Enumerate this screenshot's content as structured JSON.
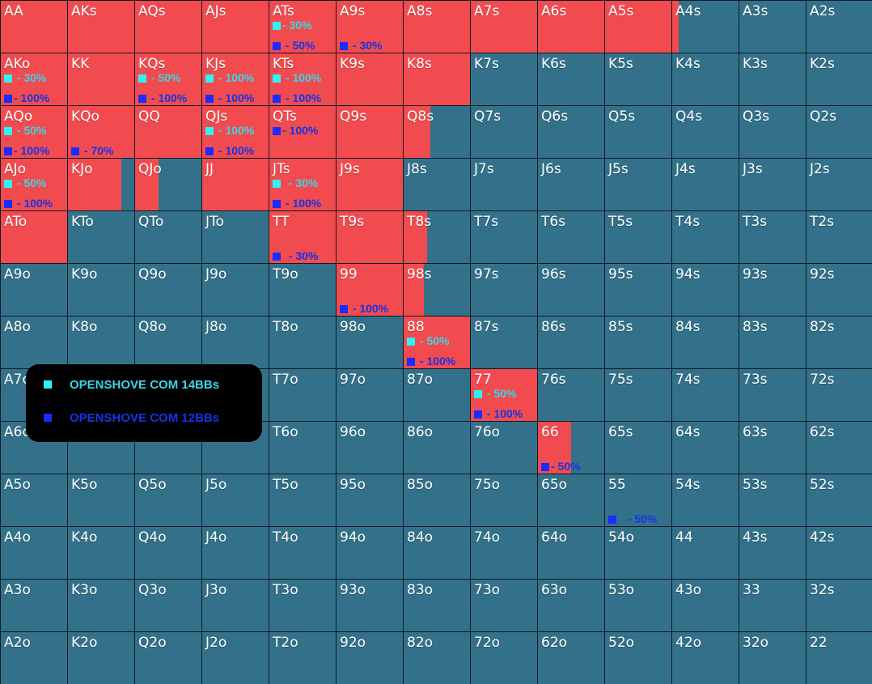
{
  "ranks": [
    "A",
    "K",
    "Q",
    "J",
    "T",
    "9",
    "8",
    "7",
    "6",
    "5",
    "4",
    "3",
    "2"
  ],
  "colors": {
    "shove": "#f24b4f",
    "fold": "#33718a",
    "marker_14bb": "#2ff2f2",
    "marker_12bb": "#1a2cff"
  },
  "legend": {
    "item_14bb": "OPENSHOVE COM 14BBs",
    "item_12bb": "OPENSHOVE COM 12BBs"
  },
  "hands": [
    [
      "AA",
      "AKs",
      "AQs",
      "AJs",
      "ATs",
      "A9s",
      "A8s",
      "A7s",
      "A6s",
      "A5s",
      "A4s",
      "A3s",
      "A2s"
    ],
    [
      "AKo",
      "KK",
      "KQs",
      "KJs",
      "KTs",
      "K9s",
      "K8s",
      "K7s",
      "K6s",
      "K5s",
      "K4s",
      "K3s",
      "K2s"
    ],
    [
      "AQo",
      "KQo",
      "QQ",
      "QJs",
      "QTs",
      "Q9s",
      "Q8s",
      "Q7s",
      "Q6s",
      "Q5s",
      "Q4s",
      "Q3s",
      "Q2s"
    ],
    [
      "AJo",
      "KJo",
      "QJo",
      "JJ",
      "JTs",
      "J9s",
      "J8s",
      "J7s",
      "J6s",
      "J5s",
      "J4s",
      "J3s",
      "J2s"
    ],
    [
      "ATo",
      "KTo",
      "QTo",
      "JTo",
      "TT",
      "T9s",
      "T8s",
      "T7s",
      "T6s",
      "T5s",
      "T4s",
      "T3s",
      "T2s"
    ],
    [
      "A9o",
      "K9o",
      "Q9o",
      "J9o",
      "T9o",
      "99",
      "98s",
      "97s",
      "96s",
      "95s",
      "94s",
      "93s",
      "92s"
    ],
    [
      "A8o",
      "K8o",
      "Q8o",
      "J8o",
      "T8o",
      "98o",
      "88",
      "87s",
      "86s",
      "85s",
      "84s",
      "83s",
      "82s"
    ],
    [
      "A7o",
      "K7o",
      "Q7o",
      "J7o",
      "T7o",
      "97o",
      "87o",
      "77",
      "76s",
      "75s",
      "74s",
      "73s",
      "72s"
    ],
    [
      "A6o",
      "K6o",
      "Q6o",
      "J6o",
      "T6o",
      "96o",
      "86o",
      "76o",
      "66",
      "65s",
      "64s",
      "63s",
      "62s"
    ],
    [
      "A5o",
      "K5o",
      "Q5o",
      "J5o",
      "T5o",
      "95o",
      "85o",
      "75o",
      "65o",
      "55",
      "54s",
      "53s",
      "52s"
    ],
    [
      "A4o",
      "K4o",
      "Q4o",
      "J4o",
      "T4o",
      "94o",
      "84o",
      "74o",
      "64o",
      "54o",
      "44",
      "43s",
      "42s"
    ],
    [
      "A3o",
      "K3o",
      "Q3o",
      "J3o",
      "T3o",
      "93o",
      "83o",
      "73o",
      "63o",
      "53o",
      "43o",
      "33",
      "32s"
    ],
    [
      "A2o",
      "K2o",
      "Q2o",
      "J2o",
      "T2o",
      "92o",
      "82o",
      "72o",
      "62o",
      "52o",
      "42o",
      "32o",
      "22"
    ]
  ],
  "shove_fraction": [
    [
      1,
      1,
      1,
      1,
      1,
      1,
      1,
      1,
      1,
      1,
      0.1,
      0,
      0
    ],
    [
      1,
      1,
      1,
      1,
      1,
      1,
      1,
      0,
      0,
      0,
      0,
      0,
      0
    ],
    [
      1,
      1,
      1,
      1,
      1,
      1,
      0.4,
      0,
      0,
      0,
      0,
      0,
      0
    ],
    [
      1,
      0.8,
      0.35,
      1,
      1,
      1,
      0,
      0,
      0,
      0,
      0,
      0,
      0
    ],
    [
      1,
      0,
      0,
      0,
      1,
      1,
      0.35,
      0,
      0,
      0,
      0,
      0,
      0
    ],
    [
      0,
      0,
      0,
      0,
      0,
      1,
      0.3,
      0,
      0,
      0,
      0,
      0,
      0
    ],
    [
      0,
      0,
      0,
      0,
      0,
      0,
      1,
      0,
      0,
      0,
      0,
      0,
      0
    ],
    [
      0,
      0,
      0,
      0,
      0,
      0,
      0,
      1,
      0,
      0,
      0,
      0,
      0
    ],
    [
      0,
      0,
      0,
      0,
      0,
      0,
      0,
      0,
      0.5,
      0,
      0,
      0,
      0
    ],
    [
      0,
      0,
      0,
      0,
      0,
      0,
      0,
      0,
      0,
      0,
      0,
      0,
      0
    ],
    [
      0,
      0,
      0,
      0,
      0,
      0,
      0,
      0,
      0,
      0,
      0,
      0,
      0
    ],
    [
      0,
      0,
      0,
      0,
      0,
      0,
      0,
      0,
      0,
      0,
      0,
      0,
      0
    ],
    [
      0,
      0,
      0,
      0,
      0,
      0,
      0,
      0,
      0,
      0,
      0,
      0,
      0
    ]
  ],
  "annotations": [
    {
      "hand": "ATs",
      "row": 0,
      "col": 4,
      "line": 1,
      "kind": "14bb",
      "text": "- 30%"
    },
    {
      "hand": "ATs",
      "row": 0,
      "col": 4,
      "line": 2,
      "kind": "12bb",
      "text": " - 50%"
    },
    {
      "hand": "A9s",
      "row": 0,
      "col": 5,
      "line": 2,
      "kind": "12bb",
      "text": " - 30%"
    },
    {
      "hand": "AKo",
      "row": 1,
      "col": 0,
      "line": 1,
      "kind": "14bb",
      "text": " - 30%"
    },
    {
      "hand": "AKo",
      "row": 1,
      "col": 0,
      "line": 2,
      "kind": "12bb",
      "text": "- 100%"
    },
    {
      "hand": "KQs",
      "row": 1,
      "col": 2,
      "line": 1,
      "kind": "14bb",
      "text": " - 50%"
    },
    {
      "hand": "KQs",
      "row": 1,
      "col": 2,
      "line": 2,
      "kind": "12bb",
      "text": " - 100%"
    },
    {
      "hand": "KJs",
      "row": 1,
      "col": 3,
      "line": 1,
      "kind": "14bb",
      "text": " - 100%"
    },
    {
      "hand": "KJs",
      "row": 1,
      "col": 3,
      "line": 2,
      "kind": "12bb",
      "text": " - 100%"
    },
    {
      "hand": "KTs",
      "row": 1,
      "col": 4,
      "line": 1,
      "kind": "14bb",
      "text": " - 100%"
    },
    {
      "hand": "KTs",
      "row": 1,
      "col": 4,
      "line": 2,
      "kind": "12bb",
      "text": " - 100%"
    },
    {
      "hand": "AQo",
      "row": 2,
      "col": 0,
      "line": 1,
      "kind": "14bb",
      "text": " - 50%"
    },
    {
      "hand": "AQo",
      "row": 2,
      "col": 0,
      "line": 2,
      "kind": "12bb",
      "text": "- 100%"
    },
    {
      "hand": "KQo",
      "row": 2,
      "col": 1,
      "line": 2,
      "kind": "12bb",
      "text": " - 70%"
    },
    {
      "hand": "QJs",
      "row": 2,
      "col": 3,
      "line": 1,
      "kind": "14bb",
      "text": " - 100%"
    },
    {
      "hand": "QJs",
      "row": 2,
      "col": 3,
      "line": 2,
      "kind": "12bb",
      "text": " - 100%"
    },
    {
      "hand": "QTs",
      "row": 2,
      "col": 4,
      "line": 1,
      "kind": "12bb",
      "text": "- 100%"
    },
    {
      "hand": "AJo",
      "row": 3,
      "col": 0,
      "line": 1,
      "kind": "14bb",
      "text": " - 50%"
    },
    {
      "hand": "AJo",
      "row": 3,
      "col": 0,
      "line": 2,
      "kind": "12bb",
      "text": " - 100%"
    },
    {
      "hand": "JTs",
      "row": 3,
      "col": 4,
      "line": 1,
      "kind": "14bb",
      "text": "  - 30%"
    },
    {
      "hand": "JTs",
      "row": 3,
      "col": 4,
      "line": 2,
      "kind": "12bb",
      "text": " - 100%"
    },
    {
      "hand": "TT",
      "row": 4,
      "col": 4,
      "line": 2,
      "kind": "12bb",
      "text": "  - 30%"
    },
    {
      "hand": "99",
      "row": 5,
      "col": 5,
      "line": 2,
      "kind": "12bb",
      "text": " - 100%"
    },
    {
      "hand": "88",
      "row": 6,
      "col": 6,
      "line": 1,
      "kind": "14bb",
      "text": " - 50%"
    },
    {
      "hand": "88",
      "row": 6,
      "col": 6,
      "line": 2,
      "kind": "12bb",
      "text": " - 100%"
    },
    {
      "hand": "77",
      "row": 7,
      "col": 7,
      "line": 1,
      "kind": "14bb",
      "text": " - 50%"
    },
    {
      "hand": "77",
      "row": 7,
      "col": 7,
      "line": 2,
      "kind": "12bb",
      "text": " - 100%"
    },
    {
      "hand": "66",
      "row": 8,
      "col": 8,
      "line": 2,
      "kind": "12bb",
      "text": "- 50%"
    },
    {
      "hand": "55",
      "row": 9,
      "col": 9,
      "line": 2,
      "kind": "12bb",
      "text": "   - 50%"
    }
  ]
}
